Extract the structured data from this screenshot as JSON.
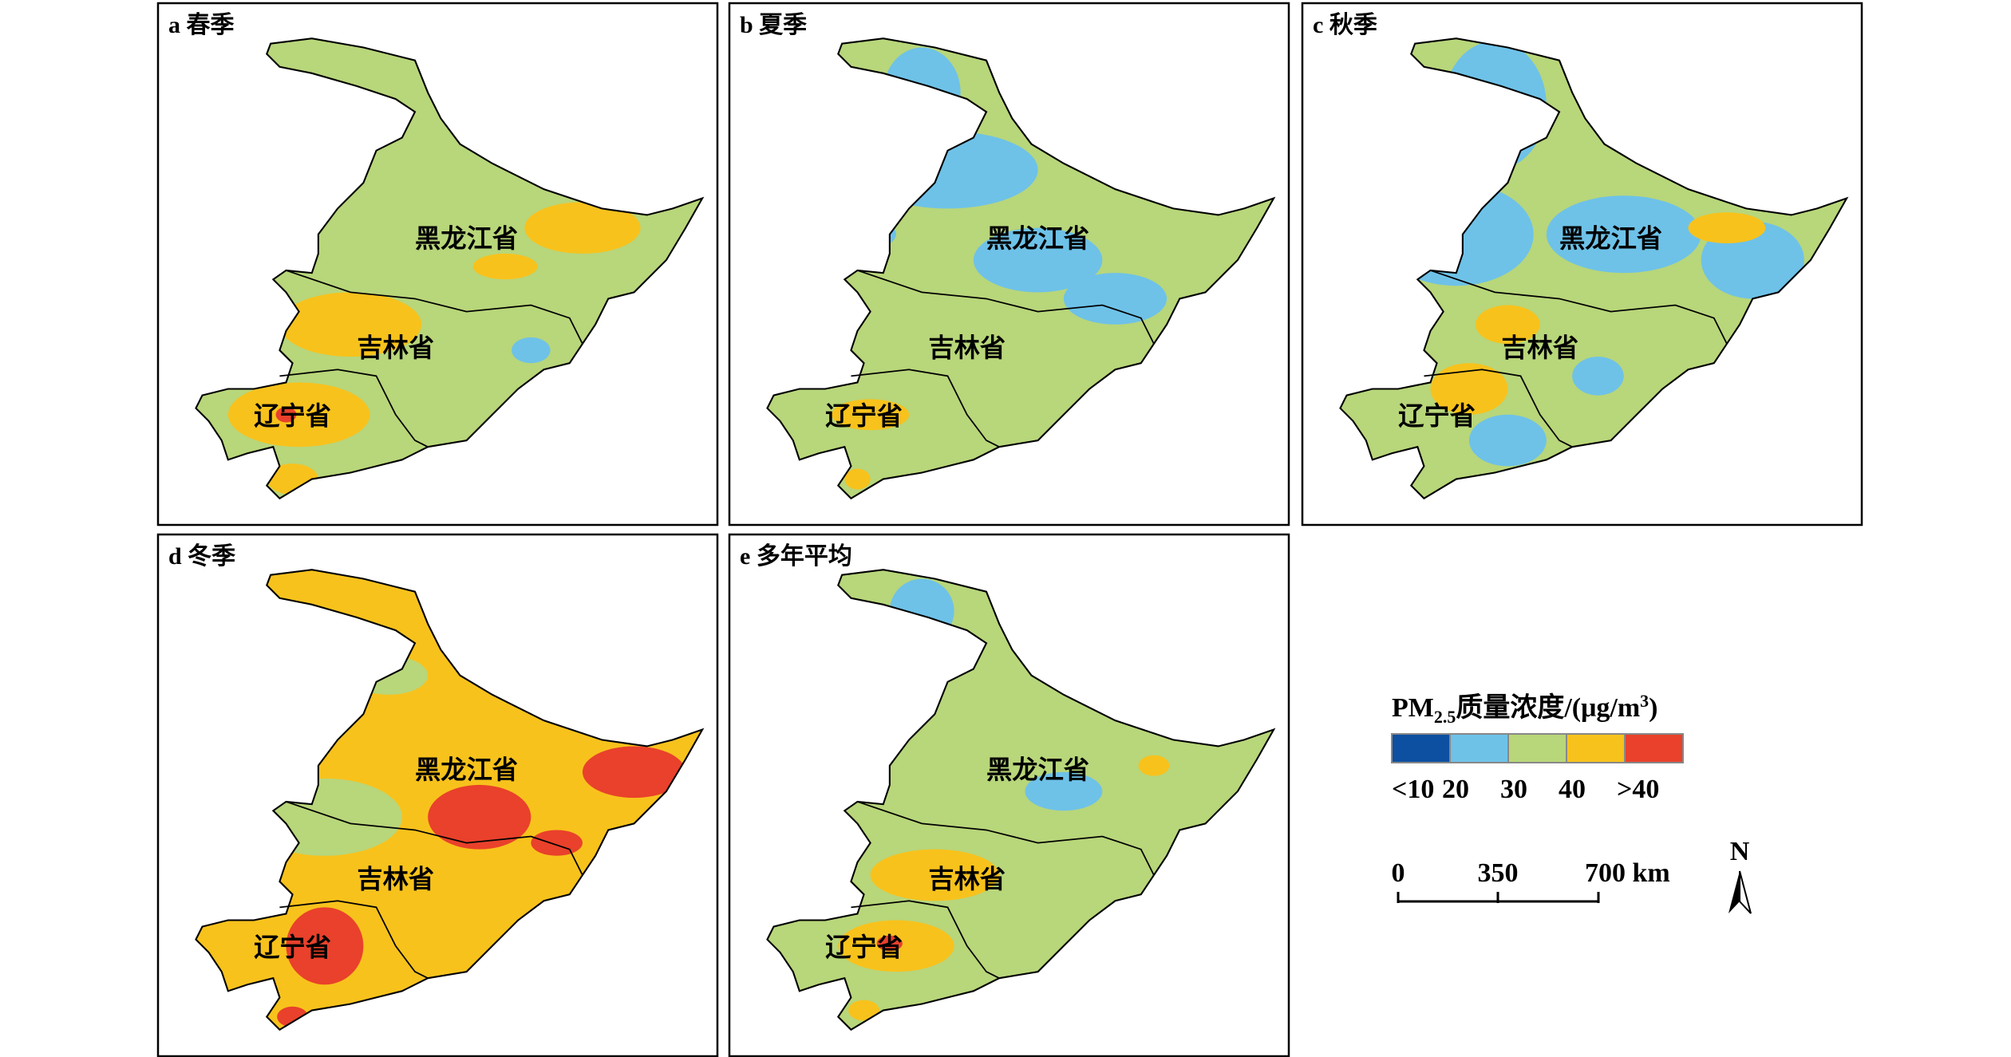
{
  "panels": [
    {
      "label": "a 春季",
      "provinces": [
        "黑龙江省",
        "吉林省",
        "辽宁省"
      ]
    },
    {
      "label": "b 夏季",
      "provinces": [
        "黑龙江省",
        "吉林省",
        "辽宁省"
      ]
    },
    {
      "label": "c 秋季",
      "provinces": [
        "黑龙江省",
        "吉林省",
        "辽宁省"
      ]
    },
    {
      "label": "d 冬季",
      "provinces": [
        "黑龙江省",
        "吉林省",
        "辽宁省"
      ]
    },
    {
      "label": "e 多年平均",
      "provinces": [
        "黑龙江省",
        "吉林省",
        "辽宁省"
      ]
    }
  ],
  "legend": {
    "title": {
      "main": "PM",
      "sub": "2.5",
      "text": "质量浓度/(μg/m",
      "sup": "3",
      "end": ")"
    },
    "classes": [
      {
        "label": "<10",
        "color": "#0d4fa0"
      },
      {
        "label": "20",
        "color": "#6ec2e8"
      },
      {
        "label": "30",
        "color": "#b8d67a"
      },
      {
        "label": "40",
        "color": "#f8c21c"
      },
      {
        "label": ">40",
        "color": "#e9412b"
      }
    ]
  },
  "scale_bar": {
    "labels": [
      "0",
      "350",
      "700 km"
    ]
  },
  "north": "N"
}
